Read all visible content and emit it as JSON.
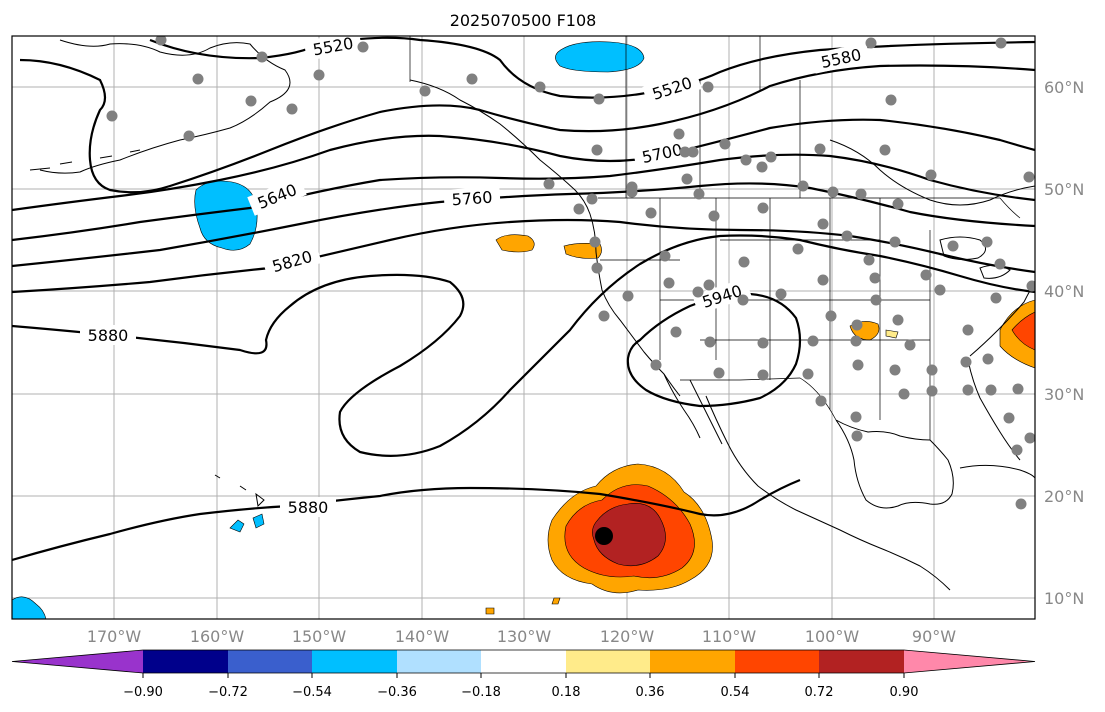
{
  "title": "2025070500 F108",
  "lon_labels": [
    "170°W",
    "160°W",
    "150°W",
    "140°W",
    "130°W",
    "120°W",
    "110°W",
    "100°W",
    "90°W"
  ],
  "lat_labels": [
    "60°N",
    "50°N",
    "40°N",
    "30°N",
    "20°N",
    "10°N"
  ],
  "contour_labels": [
    "5520",
    "5520",
    "5580",
    "5640",
    "5700",
    "5760",
    "5820",
    "5880",
    "5880",
    "5940"
  ],
  "colorbar": {
    "ticks": [
      "−0.90",
      "−0.72",
      "−0.54",
      "−0.36",
      "−0.18",
      "0.18",
      "0.36",
      "0.54",
      "0.72",
      "0.90"
    ],
    "colors": [
      "#9933cc",
      "#00008b",
      "#3a5fcd",
      "#00bfff",
      "#b0e0ff",
      "#ffffff",
      "#ffeb8a",
      "#ffa500",
      "#ff4500",
      "#b22222",
      "#ff88aa"
    ]
  },
  "storm_marker": {
    "lon": -122.5,
    "lat": 16
  }
}
